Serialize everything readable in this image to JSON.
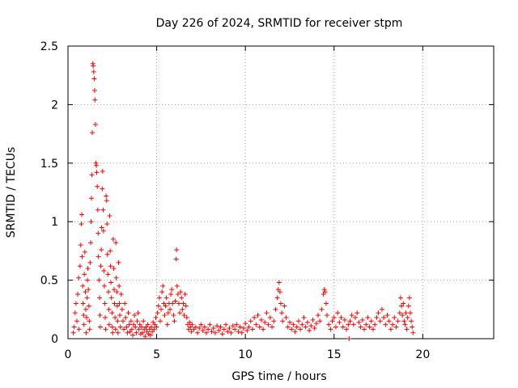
{
  "chart_data": {
    "type": "scatter",
    "title": "Day 226 of 2024, SRMTID for receiver stpm",
    "xlabel": "GPS time / hours",
    "ylabel": "SRMTID / TECUs",
    "xlim": [
      0,
      24
    ],
    "ylim": [
      0,
      2.5
    ],
    "xticks": [
      "0",
      "5",
      "10",
      "15",
      "20"
    ],
    "yticks": [
      "0",
      "0.5",
      "1",
      "1.5",
      "2",
      "2.5"
    ],
    "grid": true,
    "marker": "+",
    "series_color": "#ff0000",
    "points": [
      [
        0.3,
        0.05
      ],
      [
        0.35,
        0.1
      ],
      [
        0.4,
        0.22
      ],
      [
        0.45,
        0.3
      ],
      [
        0.5,
        0.15
      ],
      [
        0.55,
        0.38
      ],
      [
        0.6,
        0.52
      ],
      [
        0.62,
        0.08
      ],
      [
        0.68,
        0.62
      ],
      [
        0.72,
        0.8
      ],
      [
        0.75,
        0.98
      ],
      [
        0.78,
        1.06
      ],
      [
        0.8,
        0.7
      ],
      [
        0.83,
        0.45
      ],
      [
        0.85,
        0.3
      ],
      [
        0.88,
        0.2
      ],
      [
        0.9,
        0.12
      ],
      [
        0.92,
        0.55
      ],
      [
        0.95,
        0.74
      ],
      [
        0.98,
        0.4
      ],
      [
        1.0,
        0.25
      ],
      [
        1.02,
        0.05
      ],
      [
        1.05,
        0.18
      ],
      [
        1.08,
        0.35
      ],
      [
        1.1,
        0.5
      ],
      [
        1.12,
        0.6
      ],
      [
        1.15,
        0.42
      ],
      [
        1.18,
        0.28
      ],
      [
        1.2,
        0.15
      ],
      [
        1.22,
        0.08
      ],
      [
        1.25,
        0.65
      ],
      [
        1.28,
        0.82
      ],
      [
        1.3,
        1.0
      ],
      [
        1.32,
        1.2
      ],
      [
        1.35,
        1.4
      ],
      [
        1.37,
        1.76
      ],
      [
        1.4,
        2.35
      ],
      [
        1.42,
        2.33
      ],
      [
        1.45,
        2.28
      ],
      [
        1.48,
        2.22
      ],
      [
        1.5,
        2.12
      ],
      [
        1.52,
        2.04
      ],
      [
        1.55,
        1.83
      ],
      [
        1.57,
        1.5
      ],
      [
        1.6,
        1.48
      ],
      [
        1.62,
        1.42
      ],
      [
        1.65,
        1.3
      ],
      [
        1.68,
        1.1
      ],
      [
        1.7,
        0.9
      ],
      [
        1.72,
        0.7
      ],
      [
        1.75,
        0.5
      ],
      [
        1.78,
        0.35
      ],
      [
        1.8,
        0.2
      ],
      [
        1.82,
        0.1
      ],
      [
        1.85,
        0.62
      ],
      [
        1.88,
        0.76
      ],
      [
        1.9,
        0.95
      ],
      [
        1.93,
        1.28
      ],
      [
        1.95,
        1.43
      ],
      [
        1.98,
        1.1
      ],
      [
        2.0,
        0.92
      ],
      [
        2.02,
        0.58
      ],
      [
        2.05,
        0.45
      ],
      [
        2.08,
        0.3
      ],
      [
        2.1,
        0.18
      ],
      [
        2.12,
        0.08
      ],
      [
        2.15,
        1.22
      ],
      [
        2.18,
        1.18
      ],
      [
        2.2,
        0.98
      ],
      [
        2.22,
        0.72
      ],
      [
        2.25,
        0.55
      ],
      [
        2.28,
        0.4
      ],
      [
        2.3,
        0.25
      ],
      [
        2.32,
        0.12
      ],
      [
        2.35,
        1.05
      ],
      [
        2.38,
        0.75
      ],
      [
        2.4,
        0.62
      ],
      [
        2.42,
        0.48
      ],
      [
        2.45,
        0.35
      ],
      [
        2.48,
        0.22
      ],
      [
        2.5,
        0.1
      ],
      [
        2.52,
        0.05
      ],
      [
        2.55,
        0.85
      ],
      [
        2.58,
        0.6
      ],
      [
        2.6,
        0.42
      ],
      [
        2.62,
        0.3
      ],
      [
        2.65,
        0.18
      ],
      [
        2.68,
        0.08
      ],
      [
        2.7,
        0.82
      ],
      [
        2.72,
        0.52
      ],
      [
        2.75,
        0.4
      ],
      [
        2.78,
        0.28
      ],
      [
        2.8,
        0.15
      ],
      [
        2.82,
        0.05
      ],
      [
        2.85,
        0.65
      ],
      [
        2.88,
        0.45
      ],
      [
        2.9,
        0.3
      ],
      [
        2.92,
        0.2
      ],
      [
        2.95,
        0.1
      ],
      [
        3.0,
        0.38
      ],
      [
        3.05,
        0.25
      ],
      [
        3.1,
        0.15
      ],
      [
        3.15,
        0.08
      ],
      [
        3.2,
        0.3
      ],
      [
        3.25,
        0.18
      ],
      [
        3.3,
        0.1
      ],
      [
        3.35,
        0.05
      ],
      [
        3.4,
        0.22
      ],
      [
        3.45,
        0.12
      ],
      [
        3.5,
        0.06
      ],
      [
        3.55,
        0.15
      ],
      [
        3.6,
        0.08
      ],
      [
        3.65,
        0.03
      ],
      [
        3.7,
        0.12
      ],
      [
        3.75,
        0.2
      ],
      [
        3.8,
        0.1
      ],
      [
        3.85,
        0.05
      ],
      [
        3.9,
        0.15
      ],
      [
        3.95,
        0.22
      ],
      [
        4.0,
        0.08
      ],
      [
        4.05,
        0.12
      ],
      [
        4.1,
        0.04
      ],
      [
        4.15,
        0.1
      ],
      [
        4.2,
        0.05
      ],
      [
        4.25,
        0.15
      ],
      [
        4.3,
        0.08
      ],
      [
        4.35,
        0.02
      ],
      [
        4.4,
        0.1
      ],
      [
        4.45,
        0.06
      ],
      [
        4.5,
        0.12
      ],
      [
        4.55,
        0.04
      ],
      [
        4.6,
        0.08
      ],
      [
        4.65,
        0.03
      ],
      [
        4.7,
        0.1
      ],
      [
        4.75,
        0.06
      ],
      [
        4.8,
        0.14
      ],
      [
        4.85,
        0.08
      ],
      [
        4.9,
        0.12
      ],
      [
        4.95,
        0.18
      ],
      [
        5.0,
        0.1
      ],
      [
        5.05,
        0.22
      ],
      [
        5.1,
        0.28
      ],
      [
        5.15,
        0.35
      ],
      [
        5.2,
        0.15
      ],
      [
        5.25,
        0.25
      ],
      [
        5.3,
        0.4
      ],
      [
        5.35,
        0.45
      ],
      [
        5.4,
        0.3
      ],
      [
        5.45,
        0.2
      ],
      [
        5.5,
        0.28
      ],
      [
        5.55,
        0.35
      ],
      [
        5.6,
        0.12
      ],
      [
        5.65,
        0.22
      ],
      [
        5.7,
        0.3
      ],
      [
        5.75,
        0.25
      ],
      [
        5.8,
        0.38
      ],
      [
        5.85,
        0.42
      ],
      [
        5.9,
        0.3
      ],
      [
        5.95,
        0.2
      ],
      [
        6.0,
        0.15
      ],
      [
        6.05,
        0.32
      ],
      [
        6.1,
        0.68
      ],
      [
        6.12,
        0.76
      ],
      [
        6.15,
        0.45
      ],
      [
        6.2,
        0.38
      ],
      [
        6.25,
        0.3
      ],
      [
        6.3,
        0.22
      ],
      [
        6.35,
        0.4
      ],
      [
        6.4,
        0.35
      ],
      [
        6.45,
        0.25
      ],
      [
        6.5,
        0.3
      ],
      [
        6.55,
        0.2
      ],
      [
        6.6,
        0.38
      ],
      [
        6.65,
        0.28
      ],
      [
        6.7,
        0.18
      ],
      [
        6.75,
        0.12
      ],
      [
        6.8,
        0.08
      ],
      [
        6.85,
        0.14
      ],
      [
        6.9,
        0.1
      ],
      [
        6.95,
        0.06
      ],
      [
        7.0,
        0.12
      ],
      [
        7.1,
        0.08
      ],
      [
        7.2,
        0.1
      ],
      [
        7.3,
        0.05
      ],
      [
        7.4,
        0.09
      ],
      [
        7.5,
        0.12
      ],
      [
        7.6,
        0.07
      ],
      [
        7.7,
        0.1
      ],
      [
        7.8,
        0.05
      ],
      [
        7.9,
        0.08
      ],
      [
        8.0,
        0.12
      ],
      [
        8.1,
        0.06
      ],
      [
        8.2,
        0.09
      ],
      [
        8.3,
        0.05
      ],
      [
        8.4,
        0.11
      ],
      [
        8.5,
        0.07
      ],
      [
        8.6,
        0.1
      ],
      [
        8.7,
        0.04
      ],
      [
        8.8,
        0.08
      ],
      [
        8.9,
        0.12
      ],
      [
        9.0,
        0.06
      ],
      [
        9.1,
        0.09
      ],
      [
        9.2,
        0.05
      ],
      [
        9.3,
        0.11
      ],
      [
        9.4,
        0.08
      ],
      [
        9.5,
        0.12
      ],
      [
        9.6,
        0.06
      ],
      [
        9.7,
        0.1
      ],
      [
        9.8,
        0.05
      ],
      [
        9.9,
        0.09
      ],
      [
        10.0,
        0.13
      ],
      [
        10.1,
        0.07
      ],
      [
        10.2,
        0.1
      ],
      [
        10.3,
        0.15
      ],
      [
        10.4,
        0.08
      ],
      [
        10.5,
        0.18
      ],
      [
        10.6,
        0.12
      ],
      [
        10.7,
        0.2
      ],
      [
        10.8,
        0.1
      ],
      [
        10.9,
        0.16
      ],
      [
        11.0,
        0.08
      ],
      [
        11.1,
        0.14
      ],
      [
        11.2,
        0.22
      ],
      [
        11.3,
        0.12
      ],
      [
        11.4,
        0.18
      ],
      [
        11.5,
        0.1
      ],
      [
        11.6,
        0.15
      ],
      [
        11.7,
        0.25
      ],
      [
        11.8,
        0.35
      ],
      [
        11.85,
        0.42
      ],
      [
        11.9,
        0.48
      ],
      [
        11.95,
        0.4
      ],
      [
        12.0,
        0.3
      ],
      [
        12.05,
        0.22
      ],
      [
        12.1,
        0.15
      ],
      [
        12.2,
        0.28
      ],
      [
        12.3,
        0.18
      ],
      [
        12.4,
        0.1
      ],
      [
        12.5,
        0.14
      ],
      [
        12.6,
        0.08
      ],
      [
        12.7,
        0.12
      ],
      [
        12.8,
        0.06
      ],
      [
        12.9,
        0.1
      ],
      [
        13.0,
        0.15
      ],
      [
        13.1,
        0.08
      ],
      [
        13.2,
        0.12
      ],
      [
        13.3,
        0.18
      ],
      [
        13.4,
        0.1
      ],
      [
        13.5,
        0.14
      ],
      [
        13.6,
        0.07
      ],
      [
        13.7,
        0.11
      ],
      [
        13.8,
        0.16
      ],
      [
        13.9,
        0.09
      ],
      [
        14.0,
        0.13
      ],
      [
        14.1,
        0.2
      ],
      [
        14.2,
        0.15
      ],
      [
        14.3,
        0.25
      ],
      [
        14.4,
        0.38
      ],
      [
        14.45,
        0.42
      ],
      [
        14.5,
        0.4
      ],
      [
        14.55,
        0.3
      ],
      [
        14.6,
        0.2
      ],
      [
        14.7,
        0.12
      ],
      [
        14.8,
        0.08
      ],
      [
        14.9,
        0.15
      ],
      [
        15.0,
        0.18
      ],
      [
        15.1,
        0.1
      ],
      [
        15.2,
        0.22
      ],
      [
        15.3,
        0.14
      ],
      [
        15.4,
        0.18
      ],
      [
        15.5,
        0.1
      ],
      [
        15.6,
        0.16
      ],
      [
        15.7,
        0.08
      ],
      [
        15.8,
        0.12
      ],
      [
        15.85,
        0.0
      ],
      [
        15.9,
        0.15
      ],
      [
        16.0,
        0.2
      ],
      [
        16.1,
        0.12
      ],
      [
        16.2,
        0.18
      ],
      [
        16.3,
        0.22
      ],
      [
        16.4,
        0.14
      ],
      [
        16.5,
        0.1
      ],
      [
        16.6,
        0.16
      ],
      [
        16.7,
        0.08
      ],
      [
        16.8,
        0.12
      ],
      [
        16.9,
        0.18
      ],
      [
        17.0,
        0.1
      ],
      [
        17.1,
        0.15
      ],
      [
        17.2,
        0.08
      ],
      [
        17.3,
        0.12
      ],
      [
        17.4,
        0.18
      ],
      [
        17.5,
        0.22
      ],
      [
        17.6,
        0.15
      ],
      [
        17.7,
        0.25
      ],
      [
        17.8,
        0.18
      ],
      [
        17.9,
        0.12
      ],
      [
        18.0,
        0.2
      ],
      [
        18.1,
        0.15
      ],
      [
        18.2,
        0.08
      ],
      [
        18.3,
        0.12
      ],
      [
        18.4,
        0.18
      ],
      [
        18.5,
        0.1
      ],
      [
        18.6,
        0.15
      ],
      [
        18.7,
        0.22
      ],
      [
        18.75,
        0.35
      ],
      [
        18.8,
        0.28
      ],
      [
        18.85,
        0.2
      ],
      [
        18.9,
        0.3
      ],
      [
        18.95,
        0.15
      ],
      [
        19.0,
        0.12
      ],
      [
        19.05,
        0.22
      ],
      [
        19.1,
        0.08
      ],
      [
        19.15,
        0.18
      ],
      [
        19.2,
        0.28
      ],
      [
        19.25,
        0.35
      ],
      [
        19.3,
        0.22
      ],
      [
        19.35,
        0.15
      ],
      [
        19.4,
        0.1
      ],
      [
        19.45,
        0.05
      ]
    ]
  }
}
